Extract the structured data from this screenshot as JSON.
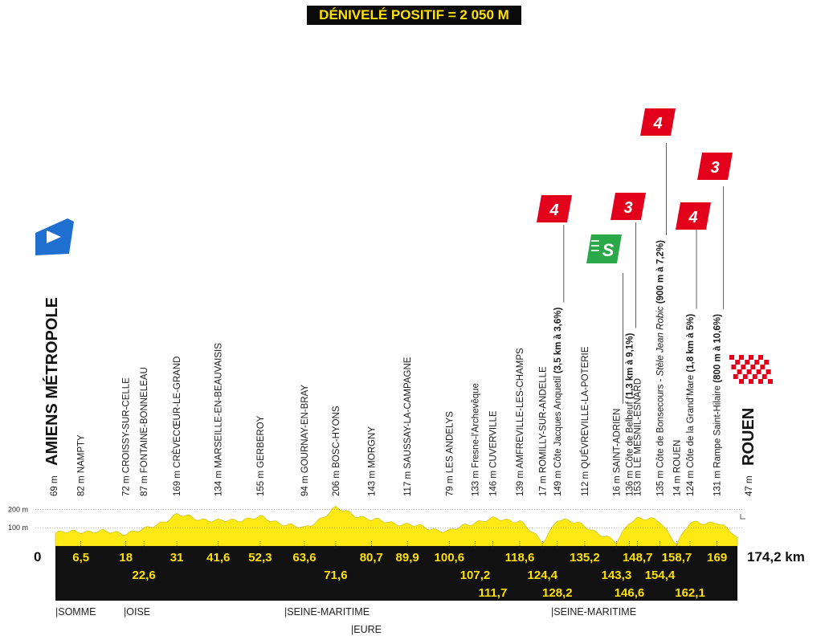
{
  "header": {
    "elevation_gain": "DÉNIVELÉ POSITIF = 2 050 M"
  },
  "start": {
    "altitude": "69 m",
    "name": "AMIENS MÉTROPOLE"
  },
  "finish": {
    "altitude": "47 m",
    "name": "ROUEN"
  },
  "total_distance": "174,2 km",
  "zero_label": "0",
  "altitude_scale": [
    {
      "label": "200 m",
      "value": 200
    },
    {
      "label": "100 m",
      "value": 100
    }
  ],
  "waypoints": [
    {
      "km": 6.5,
      "alt": "82 m",
      "name": "NAMPTY",
      "km_label": "6,5"
    },
    {
      "km": 18,
      "alt": "72 m",
      "name": "CROISSY-SUR-CELLE",
      "km_label": "18"
    },
    {
      "km": 22.6,
      "alt": "87 m",
      "name": "FONTAINE-BONNELEAU",
      "km_label": "22,6"
    },
    {
      "km": 31,
      "alt": "169 m",
      "name": "CRÈVECŒUR-LE-GRAND",
      "km_label": "31"
    },
    {
      "km": 41.6,
      "alt": "134 m",
      "name": "MARSEILLE-EN-BEAUVAISIS",
      "km_label": "41,6"
    },
    {
      "km": 52.3,
      "alt": "155 m",
      "name": "GERBEROY",
      "km_label": "52,3"
    },
    {
      "km": 63.6,
      "alt": "94 m",
      "name": "GOURNAY-EN-BRAY",
      "km_label": "63,6"
    },
    {
      "km": 71.6,
      "alt": "206 m",
      "name": "BOSC-HYONS",
      "km_label": "71,6"
    },
    {
      "km": 80.7,
      "alt": "143 m",
      "name": "MORGNY",
      "km_label": "80,7"
    },
    {
      "km": 89.9,
      "alt": "117 m",
      "name": "SAUSSAY-LA-CAMPAGNE",
      "km_label": "89,9"
    },
    {
      "km": 100.6,
      "alt": "79 m",
      "name": "LES ANDELYS",
      "km_label": "100,6"
    },
    {
      "km": 107.2,
      "alt": "133 m",
      "name": "Fresne-l'Archevêque",
      "km_label": "107,2"
    },
    {
      "km": 111.7,
      "alt": "146 m",
      "name": "CUVERVILLE",
      "km_label": "111,7"
    },
    {
      "km": 118.6,
      "alt": "139 m",
      "name": "AMFREVILLE-LES-CHAMPS",
      "km_label": "118,6"
    },
    {
      "km": 124.4,
      "alt": "17 m",
      "name": "ROMILLY-SUR-ANDELLE",
      "km_label": "124,4"
    },
    {
      "km": 128.2,
      "alt": "149 m",
      "name": "Côte Jacques Anquetil",
      "detail": " (3,5 km à 3,6%)",
      "km_label": "128,2",
      "climb": "4"
    },
    {
      "km": 135.2,
      "alt": "112 m",
      "name": "QUÉVREVILLE-LA-POTERIE",
      "km_label": "135,2"
    },
    {
      "km": 143.3,
      "alt": "16 m",
      "name": "SAINT-ADRIEN",
      "km_label": "143,3",
      "sprint": "S"
    },
    {
      "km": 146.6,
      "alt": "136 m",
      "name": "Côte de Belbeuf",
      "detail": " (1,3 km à 9,1%)",
      "km_label": "146,6",
      "climb": "3"
    },
    {
      "km": 148.7,
      "alt": "153 m",
      "name": "LE MESNIL-ESNARD",
      "km_label": "148,7"
    },
    {
      "km": 154.4,
      "alt": "135 m",
      "name": "Côte de Bonsecours - ",
      "italic": "Stèle Jean Robic",
      "detail": " (900 m à 7,2%)",
      "km_label": "154,4",
      "climb": "4"
    },
    {
      "km": 158.7,
      "alt": "14 m",
      "name": "ROUEN",
      "km_label": "158,7"
    },
    {
      "km": 162.1,
      "alt": "124 m",
      "name": "Côte de la Grand'Mare",
      "detail": " (1,8 km à 5%)",
      "km_label": "162,1",
      "climb": "4"
    },
    {
      "km": 169,
      "alt": "131 m",
      "name": "Rampe Saint-Hilaire",
      "detail": " (800 m à 10,6%)",
      "km_label": "169",
      "climb": "3"
    }
  ],
  "regions_row1": [
    "SOMME",
    "OISE",
    "SEINE-MARITIME",
    "SEINE-MARITIME"
  ],
  "regions_row2": [
    "EURE"
  ],
  "colors": {
    "profile": "#ffe914",
    "ground": "#111111",
    "climb": "#e2001a",
    "sprint": "#2aa84a",
    "start": "#1f6fd0",
    "km_text": "#ffe100"
  }
}
